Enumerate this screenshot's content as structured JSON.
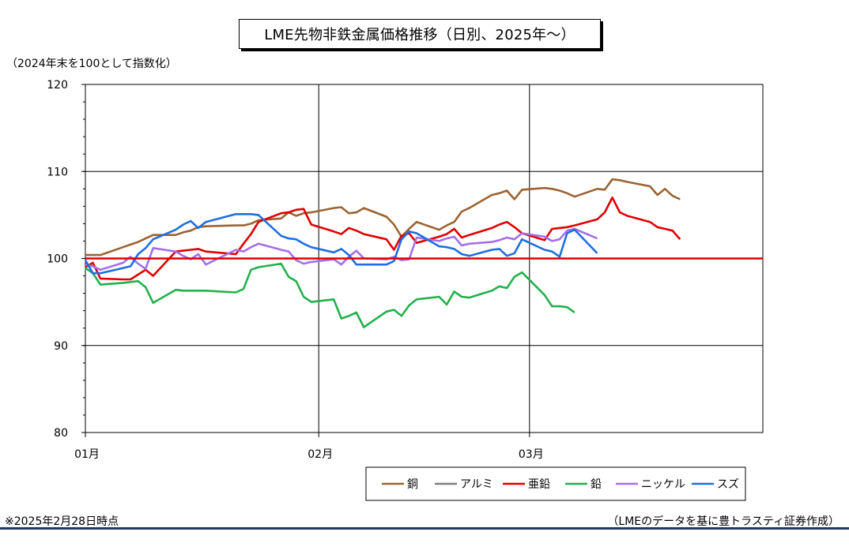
{
  "title": "LME先物非鉄金属価格推移（日別、2025年～）",
  "unit_note": "（2024年末を100として指数化）",
  "footnote_left": "※2025年2月28日時点",
  "footnote_right": "（LMEのデータを基に豊トラスティ証券作成）",
  "chart_data": {
    "type": "line",
    "title": "LME先物非鉄金属価格推移（日別、2025年～）",
    "ylabel": "（2024年末を100として指数化）",
    "xlabel": "",
    "ylim": [
      80,
      120
    ],
    "yticks": [
      "120",
      "110",
      "100",
      "90",
      "80"
    ],
    "xticks": [
      "01月",
      "02月",
      "03月"
    ],
    "xlim": [
      "2025-01-01",
      "2025-04-01"
    ],
    "grid": true,
    "legend_position": "bottom-right",
    "reference_line": {
      "value": 100,
      "color": "#e00000"
    },
    "series": [
      {
        "name": "銅",
        "color": "#9c6332",
        "points": [
          [
            "2025-01-01",
            100.4
          ],
          [
            "2025-01-02",
            100.4
          ],
          [
            "2025-01-03",
            100.4
          ],
          [
            "2025-01-06",
            101.3
          ],
          [
            "2025-01-07",
            101.6
          ],
          [
            "2025-01-08",
            101.9
          ],
          [
            "2025-01-09",
            102.3
          ],
          [
            "2025-01-10",
            102.7
          ],
          [
            "2025-01-13",
            102.7
          ],
          [
            "2025-01-14",
            103.0
          ],
          [
            "2025-01-15",
            103.2
          ],
          [
            "2025-01-16",
            103.6
          ],
          [
            "2025-01-17",
            103.7
          ],
          [
            "2025-01-21",
            103.8
          ],
          [
            "2025-01-22",
            103.8
          ],
          [
            "2025-01-23",
            104.0
          ],
          [
            "2025-01-24",
            104.4
          ],
          [
            "2025-01-27",
            104.6
          ],
          [
            "2025-01-28",
            105.3
          ],
          [
            "2025-01-29",
            104.9
          ],
          [
            "2025-01-30",
            105.2
          ],
          [
            "2025-01-31",
            105.3
          ],
          [
            "2025-02-03",
            105.8
          ],
          [
            "2025-02-04",
            105.9
          ],
          [
            "2025-02-05",
            105.2
          ],
          [
            "2025-02-06",
            105.3
          ],
          [
            "2025-02-07",
            105.8
          ],
          [
            "2025-02-10",
            104.8
          ],
          [
            "2025-02-11",
            103.9
          ],
          [
            "2025-02-12",
            102.5
          ],
          [
            "2025-02-13",
            103.4
          ],
          [
            "2025-02-14",
            104.2
          ],
          [
            "2025-02-17",
            103.3
          ],
          [
            "2025-02-18",
            103.8
          ],
          [
            "2025-02-19",
            104.2
          ],
          [
            "2025-02-20",
            105.4
          ],
          [
            "2025-02-21",
            105.8
          ],
          [
            "2025-02-24",
            107.3
          ],
          [
            "2025-02-25",
            107.5
          ],
          [
            "2025-02-26",
            107.8
          ],
          [
            "2025-02-27",
            106.8
          ],
          [
            "2025-02-28",
            107.9
          ],
          [
            "2025-03-03",
            108.1
          ],
          [
            "2025-03-04",
            108.0
          ],
          [
            "2025-03-05",
            107.8
          ],
          [
            "2025-03-06",
            107.5
          ],
          [
            "2025-03-07",
            107.1
          ],
          [
            "2025-03-10",
            108.0
          ],
          [
            "2025-03-11",
            107.9
          ],
          [
            "2025-03-12",
            109.1
          ],
          [
            "2025-03-13",
            109.0
          ],
          [
            "2025-03-14",
            108.8
          ],
          [
            "2025-03-17",
            108.3
          ],
          [
            "2025-03-18",
            107.3
          ],
          [
            "2025-03-19",
            108.0
          ],
          [
            "2025-03-20",
            107.2
          ],
          [
            "2025-03-21",
            106.8
          ]
        ]
      },
      {
        "name": "アルミ",
        "color": "#7f7f7f",
        "points": []
      },
      {
        "name": "亜鉛",
        "color": "#e00000",
        "points": [
          [
            "2025-01-01",
            99.0
          ],
          [
            "2025-01-02",
            99.5
          ],
          [
            "2025-01-03",
            97.7
          ],
          [
            "2025-01-06",
            97.6
          ],
          [
            "2025-01-07",
            97.6
          ],
          [
            "2025-01-09",
            98.7
          ],
          [
            "2025-01-10",
            98.0
          ],
          [
            "2025-01-13",
            100.8
          ],
          [
            "2025-01-14",
            100.9
          ],
          [
            "2025-01-15",
            101.0
          ],
          [
            "2025-01-16",
            101.1
          ],
          [
            "2025-01-17",
            100.8
          ],
          [
            "2025-01-21",
            100.5
          ],
          [
            "2025-01-22",
            101.7
          ],
          [
            "2025-01-23",
            102.8
          ],
          [
            "2025-01-24",
            104.2
          ],
          [
            "2025-01-27",
            105.2
          ],
          [
            "2025-01-28",
            105.3
          ],
          [
            "2025-01-29",
            105.6
          ],
          [
            "2025-01-30",
            105.7
          ],
          [
            "2025-01-31",
            103.9
          ],
          [
            "2025-02-03",
            103.1
          ],
          [
            "2025-02-04",
            102.8
          ],
          [
            "2025-02-05",
            103.5
          ],
          [
            "2025-02-06",
            103.2
          ],
          [
            "2025-02-07",
            102.8
          ],
          [
            "2025-02-10",
            102.2
          ],
          [
            "2025-02-11",
            101.0
          ],
          [
            "2025-02-12",
            102.6
          ],
          [
            "2025-02-13",
            102.9
          ],
          [
            "2025-02-14",
            101.8
          ],
          [
            "2025-02-17",
            102.5
          ],
          [
            "2025-02-18",
            102.8
          ],
          [
            "2025-02-19",
            103.4
          ],
          [
            "2025-02-20",
            102.4
          ],
          [
            "2025-02-21",
            102.7
          ],
          [
            "2025-02-24",
            103.5
          ],
          [
            "2025-02-25",
            103.9
          ],
          [
            "2025-02-26",
            104.2
          ],
          [
            "2025-02-27",
            103.6
          ],
          [
            "2025-02-28",
            102.9
          ],
          [
            "2025-03-03",
            102.1
          ],
          [
            "2025-03-04",
            103.4
          ],
          [
            "2025-03-05",
            103.5
          ],
          [
            "2025-03-06",
            103.6
          ],
          [
            "2025-03-07",
            103.8
          ],
          [
            "2025-03-10",
            104.5
          ],
          [
            "2025-03-11",
            105.3
          ],
          [
            "2025-03-12",
            107.0
          ],
          [
            "2025-03-13",
            105.3
          ],
          [
            "2025-03-14",
            104.9
          ],
          [
            "2025-03-17",
            104.2
          ],
          [
            "2025-03-18",
            103.6
          ],
          [
            "2025-03-19",
            103.4
          ],
          [
            "2025-03-20",
            103.2
          ],
          [
            "2025-03-21",
            102.2
          ]
        ]
      },
      {
        "name": "鉛",
        "color": "#22b14c",
        "points": [
          [
            "2025-01-01",
            98.9
          ],
          [
            "2025-01-02",
            98.3
          ],
          [
            "2025-01-03",
            97.0
          ],
          [
            "2025-01-06",
            97.2
          ],
          [
            "2025-01-07",
            97.3
          ],
          [
            "2025-01-08",
            97.4
          ],
          [
            "2025-01-09",
            96.7
          ],
          [
            "2025-01-10",
            94.9
          ],
          [
            "2025-01-13",
            96.4
          ],
          [
            "2025-01-14",
            96.3
          ],
          [
            "2025-01-15",
            96.3
          ],
          [
            "2025-01-16",
            96.3
          ],
          [
            "2025-01-17",
            96.3
          ],
          [
            "2025-01-21",
            96.1
          ],
          [
            "2025-01-22",
            96.5
          ],
          [
            "2025-01-23",
            98.7
          ],
          [
            "2025-01-24",
            99.0
          ],
          [
            "2025-01-27",
            99.4
          ],
          [
            "2025-01-28",
            97.9
          ],
          [
            "2025-01-29",
            97.4
          ],
          [
            "2025-01-30",
            95.6
          ],
          [
            "2025-01-31",
            95.0
          ],
          [
            "2025-02-03",
            95.3
          ],
          [
            "2025-02-04",
            93.1
          ],
          [
            "2025-02-05",
            93.4
          ],
          [
            "2025-02-06",
            93.8
          ],
          [
            "2025-02-07",
            92.1
          ],
          [
            "2025-02-10",
            93.9
          ],
          [
            "2025-02-11",
            94.1
          ],
          [
            "2025-02-12",
            93.4
          ],
          [
            "2025-02-13",
            94.6
          ],
          [
            "2025-02-14",
            95.3
          ],
          [
            "2025-02-17",
            95.6
          ],
          [
            "2025-02-18",
            94.7
          ],
          [
            "2025-02-19",
            96.2
          ],
          [
            "2025-02-20",
            95.6
          ],
          [
            "2025-02-21",
            95.5
          ],
          [
            "2025-02-24",
            96.3
          ],
          [
            "2025-02-25",
            96.8
          ],
          [
            "2025-02-26",
            96.6
          ],
          [
            "2025-02-27",
            97.9
          ],
          [
            "2025-02-28",
            98.4
          ],
          [
            "2025-03-03",
            95.8
          ],
          [
            "2025-03-04",
            94.5
          ],
          [
            "2025-03-05",
            94.5
          ],
          [
            "2025-03-06",
            94.4
          ],
          [
            "2025-03-07",
            93.8
          ]
        ]
      },
      {
        "name": "ニッケル",
        "color": "#a66ee8",
        "points": [
          [
            "2025-01-01",
            99.3
          ],
          [
            "2025-01-02",
            99.1
          ],
          [
            "2025-01-03",
            98.7
          ],
          [
            "2025-01-06",
            99.5
          ],
          [
            "2025-01-07",
            100.2
          ],
          [
            "2025-01-08",
            99.4
          ],
          [
            "2025-01-09",
            98.8
          ],
          [
            "2025-01-10",
            101.2
          ],
          [
            "2025-01-13",
            100.8
          ],
          [
            "2025-01-14",
            100.3
          ],
          [
            "2025-01-15",
            99.9
          ],
          [
            "2025-01-16",
            100.5
          ],
          [
            "2025-01-17",
            99.3
          ],
          [
            "2025-01-21",
            101.0
          ],
          [
            "2025-01-22",
            100.8
          ],
          [
            "2025-01-23",
            101.3
          ],
          [
            "2025-01-24",
            101.7
          ],
          [
            "2025-01-27",
            101.0
          ],
          [
            "2025-01-28",
            100.8
          ],
          [
            "2025-01-29",
            99.8
          ],
          [
            "2025-01-30",
            99.4
          ],
          [
            "2025-01-31",
            99.6
          ],
          [
            "2025-02-03",
            99.9
          ],
          [
            "2025-02-04",
            99.3
          ],
          [
            "2025-02-05",
            100.2
          ],
          [
            "2025-02-06",
            100.9
          ],
          [
            "2025-02-07",
            100.0
          ],
          [
            "2025-02-10",
            99.9
          ],
          [
            "2025-02-11",
            100.2
          ],
          [
            "2025-02-12",
            99.8
          ],
          [
            "2025-02-13",
            99.9
          ],
          [
            "2025-02-14",
            102.4
          ],
          [
            "2025-02-17",
            102.0
          ],
          [
            "2025-02-18",
            102.3
          ],
          [
            "2025-02-19",
            102.5
          ],
          [
            "2025-02-20",
            101.5
          ],
          [
            "2025-02-21",
            101.7
          ],
          [
            "2025-02-24",
            101.9
          ],
          [
            "2025-02-25",
            102.1
          ],
          [
            "2025-02-26",
            102.4
          ],
          [
            "2025-02-27",
            102.2
          ],
          [
            "2025-02-28",
            102.9
          ],
          [
            "2025-03-03",
            102.5
          ],
          [
            "2025-03-04",
            102.0
          ],
          [
            "2025-03-05",
            102.2
          ],
          [
            "2025-03-06",
            103.2
          ],
          [
            "2025-03-07",
            103.4
          ],
          [
            "2025-03-10",
            102.3
          ]
        ]
      },
      {
        "name": "スズ",
        "color": "#1f6fe0",
        "points": [
          [
            "2025-01-01",
            99.8
          ],
          [
            "2025-01-02",
            98.3
          ],
          [
            "2025-01-03",
            98.3
          ],
          [
            "2025-01-06",
            98.9
          ],
          [
            "2025-01-07",
            99.1
          ],
          [
            "2025-01-08",
            100.5
          ],
          [
            "2025-01-09",
            101.2
          ],
          [
            "2025-01-10",
            102.2
          ],
          [
            "2025-01-13",
            103.3
          ],
          [
            "2025-01-14",
            103.9
          ],
          [
            "2025-01-15",
            104.3
          ],
          [
            "2025-01-16",
            103.5
          ],
          [
            "2025-01-17",
            104.2
          ],
          [
            "2025-01-21",
            105.1
          ],
          [
            "2025-01-22",
            105.1
          ],
          [
            "2025-01-23",
            105.1
          ],
          [
            "2025-01-24",
            105.0
          ],
          [
            "2025-01-27",
            102.6
          ],
          [
            "2025-01-28",
            102.3
          ],
          [
            "2025-01-29",
            102.2
          ],
          [
            "2025-01-30",
            101.7
          ],
          [
            "2025-01-31",
            101.3
          ],
          [
            "2025-02-03",
            100.7
          ],
          [
            "2025-02-04",
            101.1
          ],
          [
            "2025-02-05",
            100.4
          ],
          [
            "2025-02-06",
            99.3
          ],
          [
            "2025-02-07",
            99.3
          ],
          [
            "2025-02-10",
            99.3
          ],
          [
            "2025-02-11",
            99.7
          ],
          [
            "2025-02-12",
            102.2
          ],
          [
            "2025-02-13",
            103.1
          ],
          [
            "2025-02-14",
            102.9
          ],
          [
            "2025-02-17",
            101.4
          ],
          [
            "2025-02-18",
            101.3
          ],
          [
            "2025-02-19",
            101.1
          ],
          [
            "2025-02-20",
            100.5
          ],
          [
            "2025-02-21",
            100.3
          ],
          [
            "2025-02-24",
            101.0
          ],
          [
            "2025-02-25",
            101.1
          ],
          [
            "2025-02-26",
            100.3
          ],
          [
            "2025-02-27",
            100.6
          ],
          [
            "2025-02-28",
            102.2
          ],
          [
            "2025-03-03",
            101.0
          ],
          [
            "2025-03-04",
            100.8
          ],
          [
            "2025-03-05",
            100.2
          ],
          [
            "2025-03-06",
            102.9
          ],
          [
            "2025-03-07",
            103.3
          ],
          [
            "2025-03-10",
            100.6
          ]
        ]
      }
    ]
  }
}
